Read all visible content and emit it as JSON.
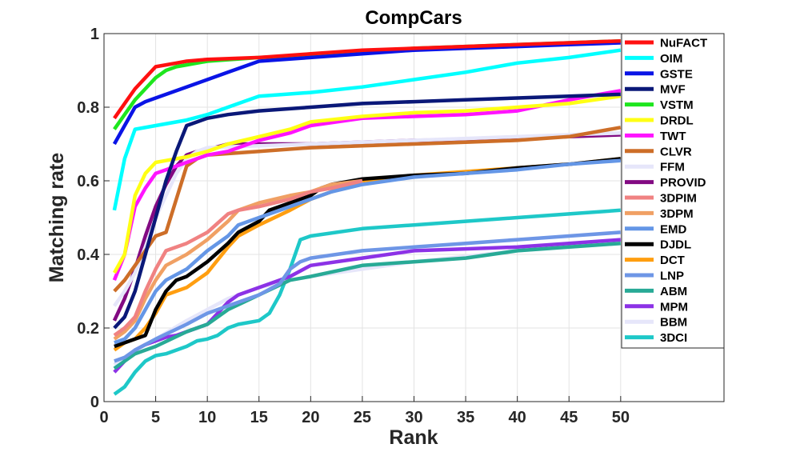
{
  "chart_data": {
    "type": "line",
    "title": "CompCars",
    "xlabel": "Rank",
    "ylabel": "Matching rate",
    "xlim": [
      0,
      60
    ],
    "ylim": [
      0,
      1
    ],
    "xticks": [
      0,
      5,
      10,
      15,
      20,
      25,
      30,
      35,
      40,
      45,
      50
    ],
    "yticks": [
      0,
      0.2,
      0.4,
      0.6,
      0.8,
      1
    ],
    "xtick_labels": [
      "0",
      "5",
      "10",
      "15",
      "20",
      "25",
      "30",
      "35",
      "40",
      "45",
      "50"
    ],
    "ytick_labels": [
      "0",
      "0.2",
      "0.4",
      "0.6",
      "0.8",
      "1"
    ],
    "grid": true,
    "legend_position": "top-right",
    "series": [
      {
        "name": "NuFACT",
        "color": "#ff1010",
        "x": [
          1,
          2,
          3,
          4,
          5,
          6,
          7,
          8,
          10,
          15,
          20,
          25,
          30,
          35,
          40,
          45,
          50
        ],
        "y": [
          0.77,
          0.81,
          0.85,
          0.88,
          0.91,
          0.915,
          0.92,
          0.925,
          0.93,
          0.935,
          0.945,
          0.955,
          0.96,
          0.965,
          0.97,
          0.975,
          0.98
        ]
      },
      {
        "name": "OIM",
        "color": "#00ffff",
        "x": [
          1,
          2,
          3,
          5,
          8,
          10,
          12,
          15,
          20,
          25,
          30,
          35,
          40,
          45,
          50
        ],
        "y": [
          0.52,
          0.66,
          0.74,
          0.75,
          0.765,
          0.78,
          0.8,
          0.83,
          0.84,
          0.855,
          0.875,
          0.895,
          0.92,
          0.935,
          0.955
        ]
      },
      {
        "name": "GSTE",
        "color": "#0a14e6",
        "x": [
          1,
          2,
          3,
          4,
          5,
          8,
          10,
          12,
          15,
          20,
          25,
          30,
          35,
          40,
          45,
          50
        ],
        "y": [
          0.7,
          0.75,
          0.8,
          0.815,
          0.825,
          0.855,
          0.875,
          0.895,
          0.925,
          0.935,
          0.945,
          0.955,
          0.96,
          0.965,
          0.97,
          0.975
        ]
      },
      {
        "name": "MVF",
        "color": "#0a1878",
        "x": [
          1,
          2,
          3,
          4,
          5,
          6,
          7,
          8,
          9,
          10,
          12,
          15,
          20,
          25,
          30,
          35,
          40,
          45,
          50
        ],
        "y": [
          0.2,
          0.23,
          0.3,
          0.4,
          0.5,
          0.6,
          0.68,
          0.75,
          0.76,
          0.77,
          0.78,
          0.79,
          0.8,
          0.81,
          0.815,
          0.82,
          0.825,
          0.83,
          0.835
        ]
      },
      {
        "name": "VSTM",
        "color": "#1ee61e",
        "x": [
          1,
          2,
          3,
          4,
          5,
          6,
          7,
          8,
          10,
          15,
          20,
          25,
          30,
          35,
          40,
          45,
          50
        ],
        "y": [
          0.74,
          0.78,
          0.82,
          0.85,
          0.88,
          0.9,
          0.91,
          0.915,
          0.925,
          0.935,
          0.94,
          0.95,
          0.96,
          0.965,
          0.97,
          0.975,
          0.98
        ]
      },
      {
        "name": "DRDL",
        "color": "#ffff14",
        "x": [
          1,
          2,
          3,
          4,
          5,
          6,
          8,
          10,
          12,
          15,
          18,
          20,
          25,
          30,
          35,
          40,
          45,
          50
        ],
        "y": [
          0.35,
          0.4,
          0.56,
          0.62,
          0.65,
          0.655,
          0.665,
          0.68,
          0.7,
          0.72,
          0.74,
          0.76,
          0.775,
          0.785,
          0.79,
          0.8,
          0.81,
          0.83
        ]
      },
      {
        "name": "TWT",
        "color": "#ff14ff",
        "x": [
          1,
          2,
          3,
          4,
          5,
          6,
          8,
          10,
          12,
          15,
          18,
          20,
          25,
          30,
          35,
          40,
          45,
          50
        ],
        "y": [
          0.33,
          0.4,
          0.53,
          0.58,
          0.62,
          0.63,
          0.65,
          0.67,
          0.68,
          0.71,
          0.73,
          0.75,
          0.77,
          0.775,
          0.78,
          0.79,
          0.82,
          0.845
        ]
      },
      {
        "name": "CLVR",
        "color": "#cd6e28",
        "x": [
          1,
          2,
          3,
          4,
          5,
          6,
          7,
          8,
          9,
          10,
          15,
          20,
          25,
          30,
          35,
          40,
          45,
          50
        ],
        "y": [
          0.3,
          0.33,
          0.37,
          0.41,
          0.45,
          0.46,
          0.55,
          0.64,
          0.66,
          0.67,
          0.68,
          0.69,
          0.695,
          0.7,
          0.705,
          0.71,
          0.72,
          0.745
        ]
      },
      {
        "name": "FFM",
        "color": "#e6e6fa",
        "x": [
          1,
          2,
          3,
          4,
          5,
          6,
          7,
          8,
          9,
          10,
          15,
          20,
          25,
          30,
          35,
          40,
          45,
          50
        ],
        "y": [
          0.26,
          0.3,
          0.35,
          0.42,
          0.5,
          0.56,
          0.62,
          0.66,
          0.68,
          0.69,
          0.695,
          0.7,
          0.705,
          0.71,
          0.715,
          0.72,
          0.725,
          0.73
        ]
      },
      {
        "name": "PROVID",
        "color": "#820a82",
        "x": [
          1,
          2,
          3,
          4,
          5,
          6,
          7,
          8,
          9,
          10,
          12,
          15,
          20,
          25,
          30,
          35,
          40,
          45,
          50
        ],
        "y": [
          0.22,
          0.28,
          0.36,
          0.45,
          0.53,
          0.59,
          0.64,
          0.67,
          0.68,
          0.685,
          0.7,
          0.7,
          0.7,
          0.705,
          0.71,
          0.712,
          0.715,
          0.72,
          0.725
        ]
      },
      {
        "name": "3DPIM",
        "color": "#f08282",
        "x": [
          1,
          2,
          3,
          4,
          5,
          6,
          8,
          10,
          12,
          13,
          15,
          18,
          20,
          22,
          25
        ],
        "y": [
          0.18,
          0.2,
          0.23,
          0.3,
          0.36,
          0.41,
          0.43,
          0.46,
          0.51,
          0.52,
          0.53,
          0.55,
          0.57,
          0.58,
          0.6
        ]
      },
      {
        "name": "3DPM",
        "color": "#f0a064",
        "x": [
          1,
          2,
          3,
          4,
          5,
          6,
          8,
          10,
          12,
          13,
          15,
          18,
          20,
          22,
          25
        ],
        "y": [
          0.17,
          0.19,
          0.22,
          0.28,
          0.33,
          0.37,
          0.4,
          0.44,
          0.49,
          0.52,
          0.54,
          0.56,
          0.57,
          0.59,
          0.6
        ]
      },
      {
        "name": "EMD",
        "color": "#6496e6",
        "x": [
          1,
          2,
          3,
          4,
          5,
          6,
          8,
          10,
          12,
          13,
          15,
          18,
          20,
          22,
          25,
          30,
          35,
          40,
          45,
          50
        ],
        "y": [
          0.16,
          0.17,
          0.2,
          0.25,
          0.3,
          0.33,
          0.36,
          0.41,
          0.45,
          0.48,
          0.5,
          0.53,
          0.55,
          0.57,
          0.59,
          0.61,
          0.62,
          0.63,
          0.645,
          0.655
        ]
      },
      {
        "name": "DJDL",
        "color": "#000000",
        "x": [
          1,
          2,
          3,
          4,
          5,
          6,
          7,
          8,
          10,
          12,
          13,
          15,
          16,
          18,
          20,
          21,
          22,
          25,
          30,
          35,
          40,
          45,
          50
        ],
        "y": [
          0.15,
          0.16,
          0.17,
          0.18,
          0.25,
          0.3,
          0.33,
          0.34,
          0.38,
          0.43,
          0.46,
          0.49,
          0.52,
          0.54,
          0.56,
          0.58,
          0.59,
          0.605,
          0.615,
          0.62,
          0.635,
          0.645,
          0.66
        ]
      },
      {
        "name": "DCT",
        "color": "#ff9e10",
        "x": [
          1,
          2,
          3,
          4,
          5,
          6,
          7,
          8,
          9,
          10,
          12,
          13,
          15,
          18,
          20,
          22,
          25,
          30,
          35,
          40,
          45,
          50
        ],
        "y": [
          0.14,
          0.16,
          0.17,
          0.2,
          0.24,
          0.29,
          0.3,
          0.31,
          0.33,
          0.35,
          0.42,
          0.45,
          0.48,
          0.52,
          0.55,
          0.57,
          0.6,
          0.615,
          0.625,
          0.635,
          0.645,
          0.66
        ]
      },
      {
        "name": "LNP",
        "color": "#6e96e6",
        "x": [
          1,
          2,
          3,
          5,
          8,
          10,
          12,
          15,
          17,
          18,
          19,
          20,
          25,
          30,
          35,
          40,
          45,
          50
        ],
        "y": [
          0.11,
          0.12,
          0.14,
          0.17,
          0.21,
          0.24,
          0.26,
          0.29,
          0.32,
          0.36,
          0.38,
          0.39,
          0.41,
          0.42,
          0.43,
          0.44,
          0.45,
          0.46
        ]
      },
      {
        "name": "ABM",
        "color": "#28aa96",
        "x": [
          1,
          2,
          3,
          4,
          5,
          8,
          10,
          12,
          15,
          18,
          20,
          25,
          30,
          35,
          40,
          45,
          50
        ],
        "y": [
          0.09,
          0.11,
          0.13,
          0.14,
          0.15,
          0.19,
          0.21,
          0.25,
          0.29,
          0.33,
          0.34,
          0.37,
          0.38,
          0.39,
          0.41,
          0.42,
          0.43
        ]
      },
      {
        "name": "MPM",
        "color": "#8c32e6",
        "x": [
          1,
          2,
          3,
          4,
          5,
          6,
          7,
          8,
          9,
          10,
          12,
          13,
          15,
          18,
          20,
          25,
          30,
          35,
          40,
          45,
          50
        ],
        "y": [
          0.08,
          0.11,
          0.14,
          0.155,
          0.165,
          0.175,
          0.18,
          0.19,
          0.2,
          0.21,
          0.27,
          0.29,
          0.31,
          0.34,
          0.37,
          0.39,
          0.41,
          0.415,
          0.42,
          0.43,
          0.44
        ]
      },
      {
        "name": "BBM",
        "color": "#e6e6fa",
        "x": [
          1,
          2,
          3,
          5,
          8,
          10,
          12,
          15,
          18,
          20,
          25,
          30,
          35,
          40,
          45,
          50
        ],
        "y": [
          0.1,
          0.12,
          0.14,
          0.17,
          0.22,
          0.25,
          0.28,
          0.31,
          0.33,
          0.34,
          0.36,
          0.38,
          0.395,
          0.41,
          0.42,
          0.43
        ]
      },
      {
        "name": "3DCI",
        "color": "#1ec8c8",
        "x": [
          1,
          2,
          3,
          4,
          5,
          6,
          7,
          8,
          9,
          10,
          11,
          12,
          13,
          14,
          15,
          16,
          17,
          18,
          19,
          20,
          25,
          30,
          35,
          40,
          45,
          50
        ],
        "y": [
          0.02,
          0.04,
          0.08,
          0.11,
          0.125,
          0.13,
          0.14,
          0.15,
          0.165,
          0.17,
          0.18,
          0.2,
          0.21,
          0.215,
          0.22,
          0.24,
          0.29,
          0.36,
          0.44,
          0.45,
          0.47,
          0.48,
          0.49,
          0.5,
          0.51,
          0.52
        ]
      }
    ]
  }
}
